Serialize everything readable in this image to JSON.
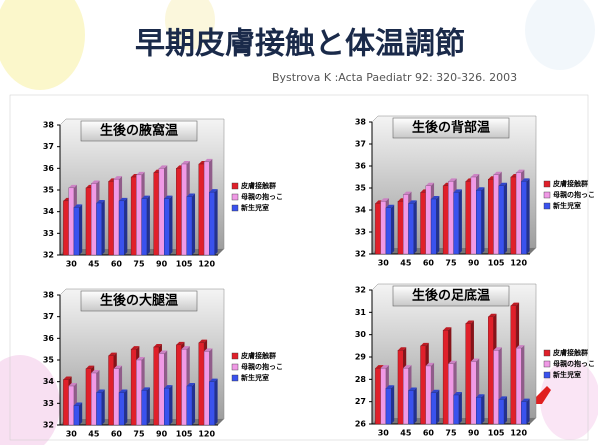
{
  "slide": {
    "title": "早期皮膚接触と体温調節",
    "citation": "Bystrova K :Acta Paediatr 92: 320-326. 2003"
  },
  "chart_data": [
    {
      "type": "bar",
      "title": "生後の腋窩温",
      "categories": [
        "30",
        "45",
        "60",
        "75",
        "90",
        "105",
        "120"
      ],
      "series": [
        {
          "name": "皮膚接触群",
          "color": "#e0202a",
          "values": [
            34.5,
            35.1,
            35.4,
            35.6,
            35.8,
            36.0,
            36.2
          ]
        },
        {
          "name": "母親の抱っこ",
          "color": "#f09ae6",
          "values": [
            35.1,
            35.3,
            35.5,
            35.7,
            36.0,
            36.2,
            36.3
          ]
        },
        {
          "name": "新生児室",
          "color": "#3a52ee",
          "values": [
            34.2,
            34.4,
            34.5,
            34.6,
            34.6,
            34.7,
            34.9
          ]
        }
      ],
      "ylim": [
        32,
        38
      ],
      "yticks": [
        32,
        33,
        34,
        35,
        36,
        37,
        38
      ],
      "legend": "right"
    },
    {
      "type": "bar",
      "title": "生後の背部温",
      "categories": [
        "30",
        "45",
        "60",
        "75",
        "90",
        "105",
        "120"
      ],
      "series": [
        {
          "name": "皮膚接触群",
          "color": "#e0202a",
          "values": [
            34.3,
            34.4,
            34.8,
            35.1,
            35.3,
            35.4,
            35.5
          ]
        },
        {
          "name": "母親の抱っこ",
          "color": "#f09ae6",
          "values": [
            34.4,
            34.7,
            35.1,
            35.3,
            35.5,
            35.6,
            35.7
          ]
        },
        {
          "name": "新生児室",
          "color": "#3a52ee",
          "values": [
            34.1,
            34.3,
            34.5,
            34.8,
            34.9,
            35.1,
            35.3
          ]
        }
      ],
      "ylim": [
        32,
        38
      ],
      "yticks": [
        32,
        33,
        34,
        35,
        36,
        37,
        38
      ],
      "legend": "right"
    },
    {
      "type": "bar",
      "title": "生後の大腿温",
      "categories": [
        "30",
        "45",
        "60",
        "75",
        "90",
        "105",
        "120"
      ],
      "series": [
        {
          "name": "皮膚接触群",
          "color": "#e0202a",
          "values": [
            34.1,
            34.6,
            35.2,
            35.5,
            35.6,
            35.7,
            35.8
          ]
        },
        {
          "name": "母親の抱っこ",
          "color": "#f09ae6",
          "values": [
            33.8,
            34.4,
            34.6,
            35.0,
            35.3,
            35.5,
            35.4
          ]
        },
        {
          "name": "新生児室",
          "color": "#3a52ee",
          "values": [
            32.9,
            33.5,
            33.5,
            33.6,
            33.7,
            33.8,
            34.0
          ]
        }
      ],
      "ylim": [
        32,
        38
      ],
      "yticks": [
        32,
        33,
        34,
        35,
        36,
        37,
        38
      ],
      "legend": "right"
    },
    {
      "type": "bar",
      "title": "生後の足底温",
      "categories": [
        "30",
        "45",
        "60",
        "75",
        "90",
        "105",
        "120"
      ],
      "series": [
        {
          "name": "皮膚接触群",
          "color": "#e0202a",
          "values": [
            28.5,
            29.3,
            29.5,
            30.2,
            30.5,
            30.8,
            31.3
          ]
        },
        {
          "name": "母親の抱っこ",
          "color": "#f09ae6",
          "values": [
            28.5,
            28.5,
            28.6,
            28.7,
            28.8,
            29.3,
            29.4
          ]
        },
        {
          "name": "新生児室",
          "color": "#3a52ee",
          "values": [
            27.6,
            27.5,
            27.4,
            27.3,
            27.2,
            27.1,
            27.0
          ]
        }
      ],
      "ylim": [
        26,
        32
      ],
      "yticks": [
        26,
        27,
        28,
        29,
        30,
        31,
        32
      ],
      "legend": "right"
    }
  ]
}
